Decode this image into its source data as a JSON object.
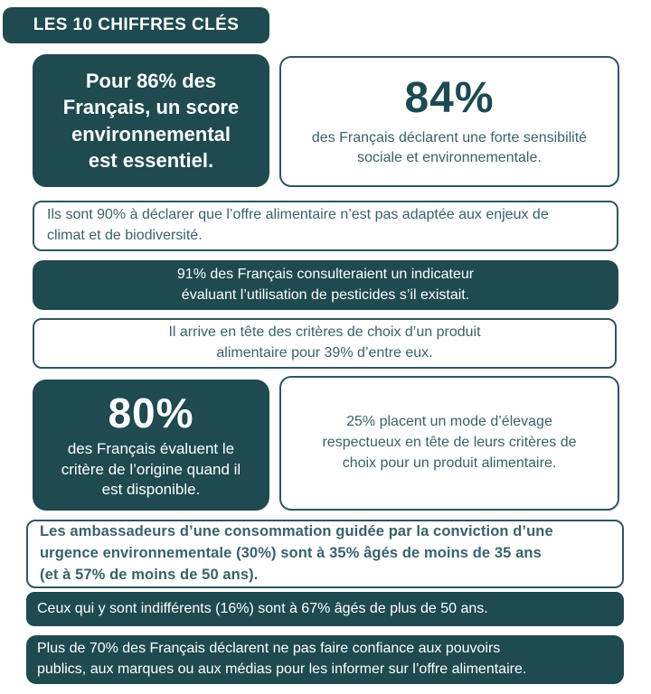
{
  "title": "LES 10 CHIFFRES CLÉS",
  "colors": {
    "dark_teal": "#1e4a50",
    "light_box_border": "#2e575e",
    "teal_text": "#38626b",
    "big_number_text": "#1d4a52",
    "background": "#ffffff"
  },
  "boxes": [
    {
      "variant": "dark",
      "lines": [
        "Pour 86% des",
        "Français, un score",
        "environnemental",
        "est essentiel."
      ]
    },
    {
      "variant": "light",
      "big": "84%",
      "lines": [
        "des Français déclarent une forte sensibilité",
        "sociale et environnementale."
      ]
    },
    {
      "variant": "light",
      "lines": [
        "Ils sont 90% à déclarer que l’offre alimentaire n’est pas adaptée aux enjeux de",
        "climat et de biodiversité."
      ]
    },
    {
      "variant": "dark",
      "lines": [
        "91% des Français consulteraient un indicateur",
        "évaluant l’utilisation de pesticides s’il existait."
      ]
    },
    {
      "variant": "light",
      "lines": [
        "Il arrive en tête des critères de choix d’un produit",
        "alimentaire pour 39% d’entre eux."
      ]
    },
    {
      "variant": "dark",
      "big": "80%",
      "lines": [
        "des Français évaluent le",
        "critère de l’origine quand il",
        "est disponible."
      ]
    },
    {
      "variant": "light",
      "lines": [
        "25% placent un mode d’élevage",
        "respectueux en tête de leurs critères de",
        "choix pour un produit alimentaire."
      ]
    },
    {
      "variant": "light",
      "lines": [
        "Les ambassadeurs d’une consommation guidée par la conviction d’une",
        "urgence environnementale (30%) sont à 35% âgés de moins de 35 ans",
        "(et à 57% de moins de 50 ans)."
      ]
    },
    {
      "variant": "dark",
      "lines": [
        "Ceux qui y sont indifférents (16%) sont à 67% âgés de plus de 50 ans."
      ]
    },
    {
      "variant": "dark",
      "lines": [
        "Plus de 70% des Français déclarent ne pas faire confiance aux pouvoirs",
        "publics, aux marques ou aux médias pour les informer sur l’offre alimentaire."
      ]
    }
  ]
}
